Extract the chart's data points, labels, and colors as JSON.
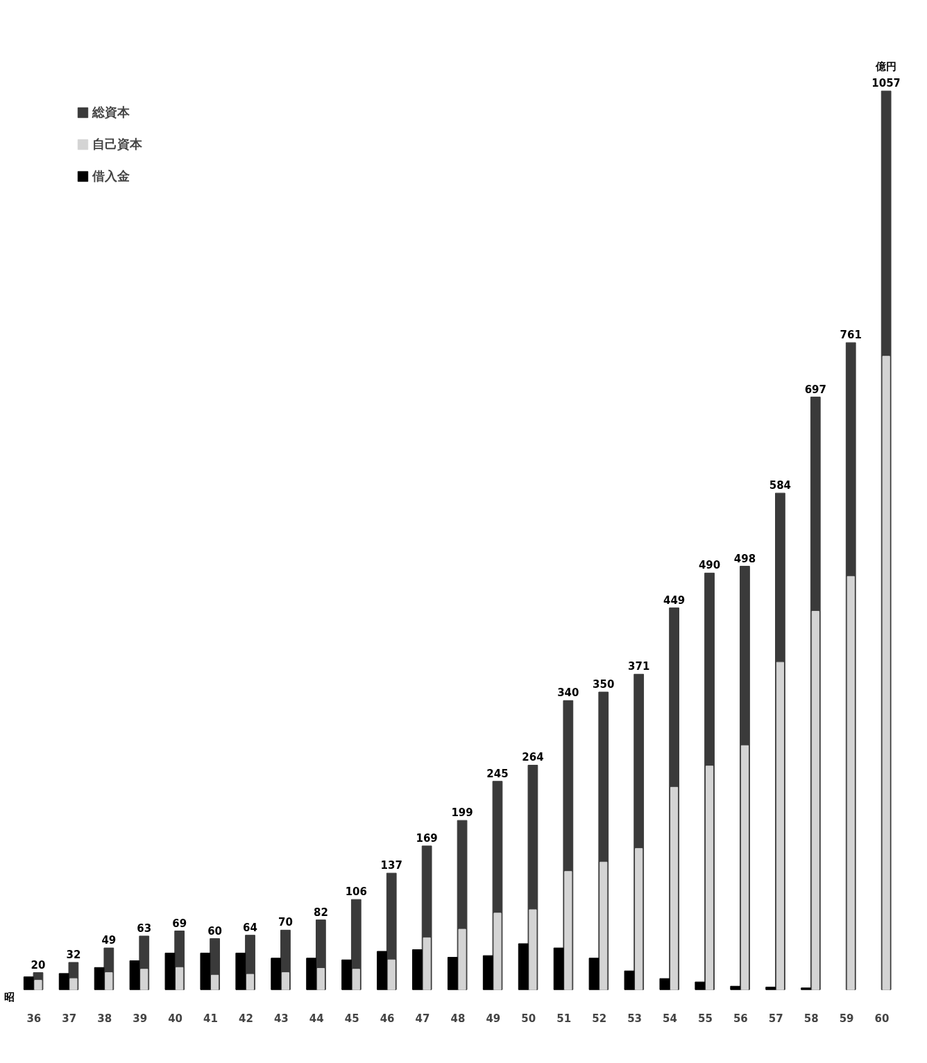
{
  "chart_data": {
    "type": "bar",
    "xlabel": "昭",
    "ylabel": "億円",
    "categories": [
      "36",
      "37",
      "38",
      "39",
      "40",
      "41",
      "42",
      "43",
      "44",
      "45",
      "46",
      "47",
      "48",
      "49",
      "50",
      "51",
      "52",
      "53",
      "54",
      "55",
      "56",
      "57",
      "58",
      "59",
      "60"
    ],
    "series": [
      {
        "name": "総資本",
        "color": "#3a3a3a",
        "values": [
          20,
          32,
          49,
          63,
          69,
          60,
          64,
          70,
          82,
          106,
          137,
          169,
          199,
          245,
          264,
          340,
          350,
          371,
          449,
          490,
          498,
          584,
          697,
          761,
          1057
        ],
        "value_labels": [
          "20",
          "32",
          "49",
          "63",
          "69",
          "60",
          "64",
          "70",
          "82",
          "106",
          "137",
          "169",
          "199",
          "245",
          "264",
          "340",
          "350",
          "371",
          "449",
          "490",
          "498",
          "584",
          "697",
          "761",
          "1057"
        ]
      },
      {
        "name": "自己資本",
        "color": "#d4d4d4",
        "values": [
          11,
          13,
          20,
          24,
          26,
          17,
          18,
          20,
          25,
          24,
          35,
          61,
          71,
          90,
          94,
          139,
          150,
          166,
          238,
          263,
          287,
          385,
          445,
          486,
          745
        ]
      },
      {
        "name": "借入金",
        "color": "#000000",
        "values": [
          15,
          19,
          26,
          34,
          43,
          43,
          43,
          37,
          37,
          35,
          45,
          47,
          38,
          40,
          54,
          49,
          37,
          22,
          13,
          9,
          4,
          3,
          2,
          null,
          null
        ]
      }
    ],
    "legend": "top left",
    "grid": false,
    "tick_labels": "x"
  }
}
